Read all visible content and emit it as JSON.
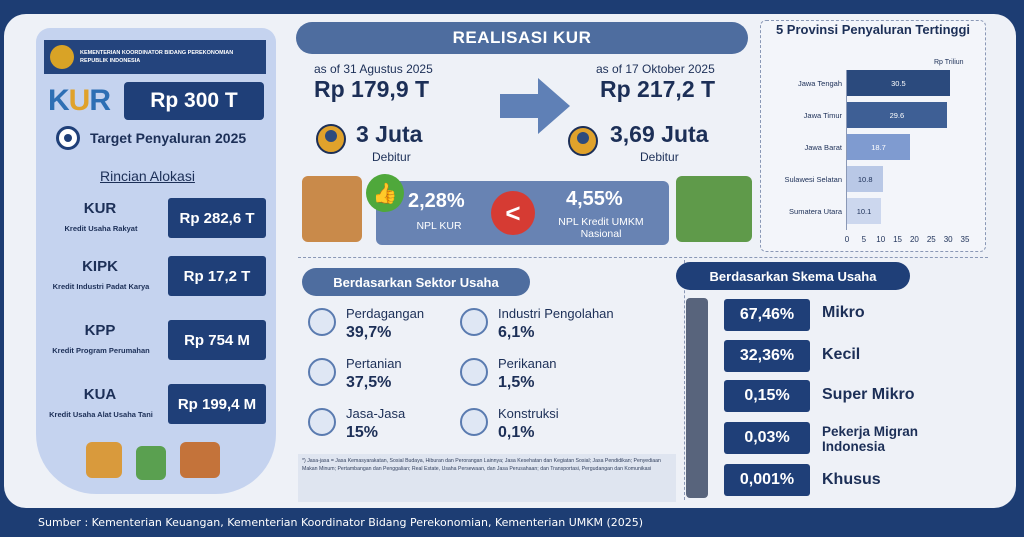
{
  "header": {
    "ministry": "KEMENTERIAN KOORDINATOR BIDANG PEREKONOMIAN REPUBLIK INDONESIA",
    "logo": "KUR",
    "target_value": "Rp 300 T",
    "target_label": "Target Penyaluran 2025",
    "rincian_title": "Rincian Alokasi"
  },
  "allocations": [
    {
      "name": "KUR",
      "desc": "Kredit Usaha Rakyat",
      "value": "Rp 282,6 T"
    },
    {
      "name": "KIPK",
      "desc": "Kredit Industri Padat Karya",
      "value": "Rp 17,2 T"
    },
    {
      "name": "KPP",
      "desc": "Kredit Program Perumahan",
      "value": "Rp 754 M"
    },
    {
      "name": "KUA",
      "desc": "Kredit Usaha Alat Usaha Tani",
      "value": "Rp 199,4 M"
    }
  ],
  "realisasi": {
    "title": "REALISASI KUR",
    "left": {
      "asof": "as of 31 Agustus 2025",
      "value": "Rp 179,9 T",
      "debitur": "3 Juta",
      "debitur_label": "Debitur"
    },
    "right": {
      "asof": "as of 17 Oktober 2025",
      "value": "Rp 217,2 T",
      "debitur": "3,69 Juta",
      "debitur_label": "Debitur"
    },
    "npl_kur": "2,28%",
    "npl_kur_label": "NPL KUR",
    "npl_umkm": "4,55%",
    "npl_umkm_label": "NPL Kredit UMKM Nasional"
  },
  "chart_data": {
    "type": "bar",
    "title": "5 Provinsi Penyaluran Tertinggi",
    "unit": "Rp Triliun",
    "categories": [
      "Jawa Tengah",
      "Jawa Timur",
      "Jawa Barat",
      "Sulawesi Selatan",
      "Sumatera Utara"
    ],
    "values": [
      30.5,
      29.6,
      18.7,
      10.8,
      10.1
    ],
    "xticks": [
      "0",
      "5",
      "10",
      "15",
      "20",
      "25",
      "30",
      "35"
    ],
    "xlim": [
      0,
      35
    ],
    "colors": [
      "#2b4a7d",
      "#3e5f95",
      "#7f9bd0",
      "#b9c8e6",
      "#ccd7ee"
    ]
  },
  "sektor": {
    "title": "Berdasarkan Sektor Usaha",
    "items": [
      {
        "name": "Perdagangan",
        "value": "39,7%",
        "icon": "shop-icon"
      },
      {
        "name": "Industri Pengolahan",
        "value": "6,1%",
        "icon": "gear-icon"
      },
      {
        "name": "Pertanian",
        "value": "37,5%",
        "icon": "plant-icon"
      },
      {
        "name": "Perikanan",
        "value": "1,5%",
        "icon": "fish-icon"
      },
      {
        "name": "Jasa-Jasa",
        "value": "15%",
        "icon": "service-icon"
      },
      {
        "name": "Konstruksi",
        "value": "0,1%",
        "icon": "building-icon"
      }
    ],
    "note": "*) Jasa-jasa = Jasa Kemasyarakatan, Sosial Budaya, Hiburan dan Perorangan Lainnya; Jasa Kesehatan dan Kegiatan Sosial; Jasa Pendidikan; Penyediaan Makan Minum; Pertambangan dan Penggalian; Real Estate, Usaha Persewaan, dan Jasa Perusahaan; dan Transportasi, Pergudangan dan Komunikasi"
  },
  "skema": {
    "title": "Berdasarkan Skema Usaha",
    "items": [
      {
        "value": "67,46%",
        "name": "Mikro"
      },
      {
        "value": "32,36%",
        "name": "Kecil"
      },
      {
        "value": "0,15%",
        "name": "Super Mikro"
      },
      {
        "value": "0,03%",
        "name": "Pekerja Migran Indonesia"
      },
      {
        "value": "0,001%",
        "name": "Khusus"
      }
    ]
  },
  "source": "Sumber : Kementerian Keuangan, Kementerian Koordinator Bidang Perekonomian, Kementerian UMKM (2025)"
}
